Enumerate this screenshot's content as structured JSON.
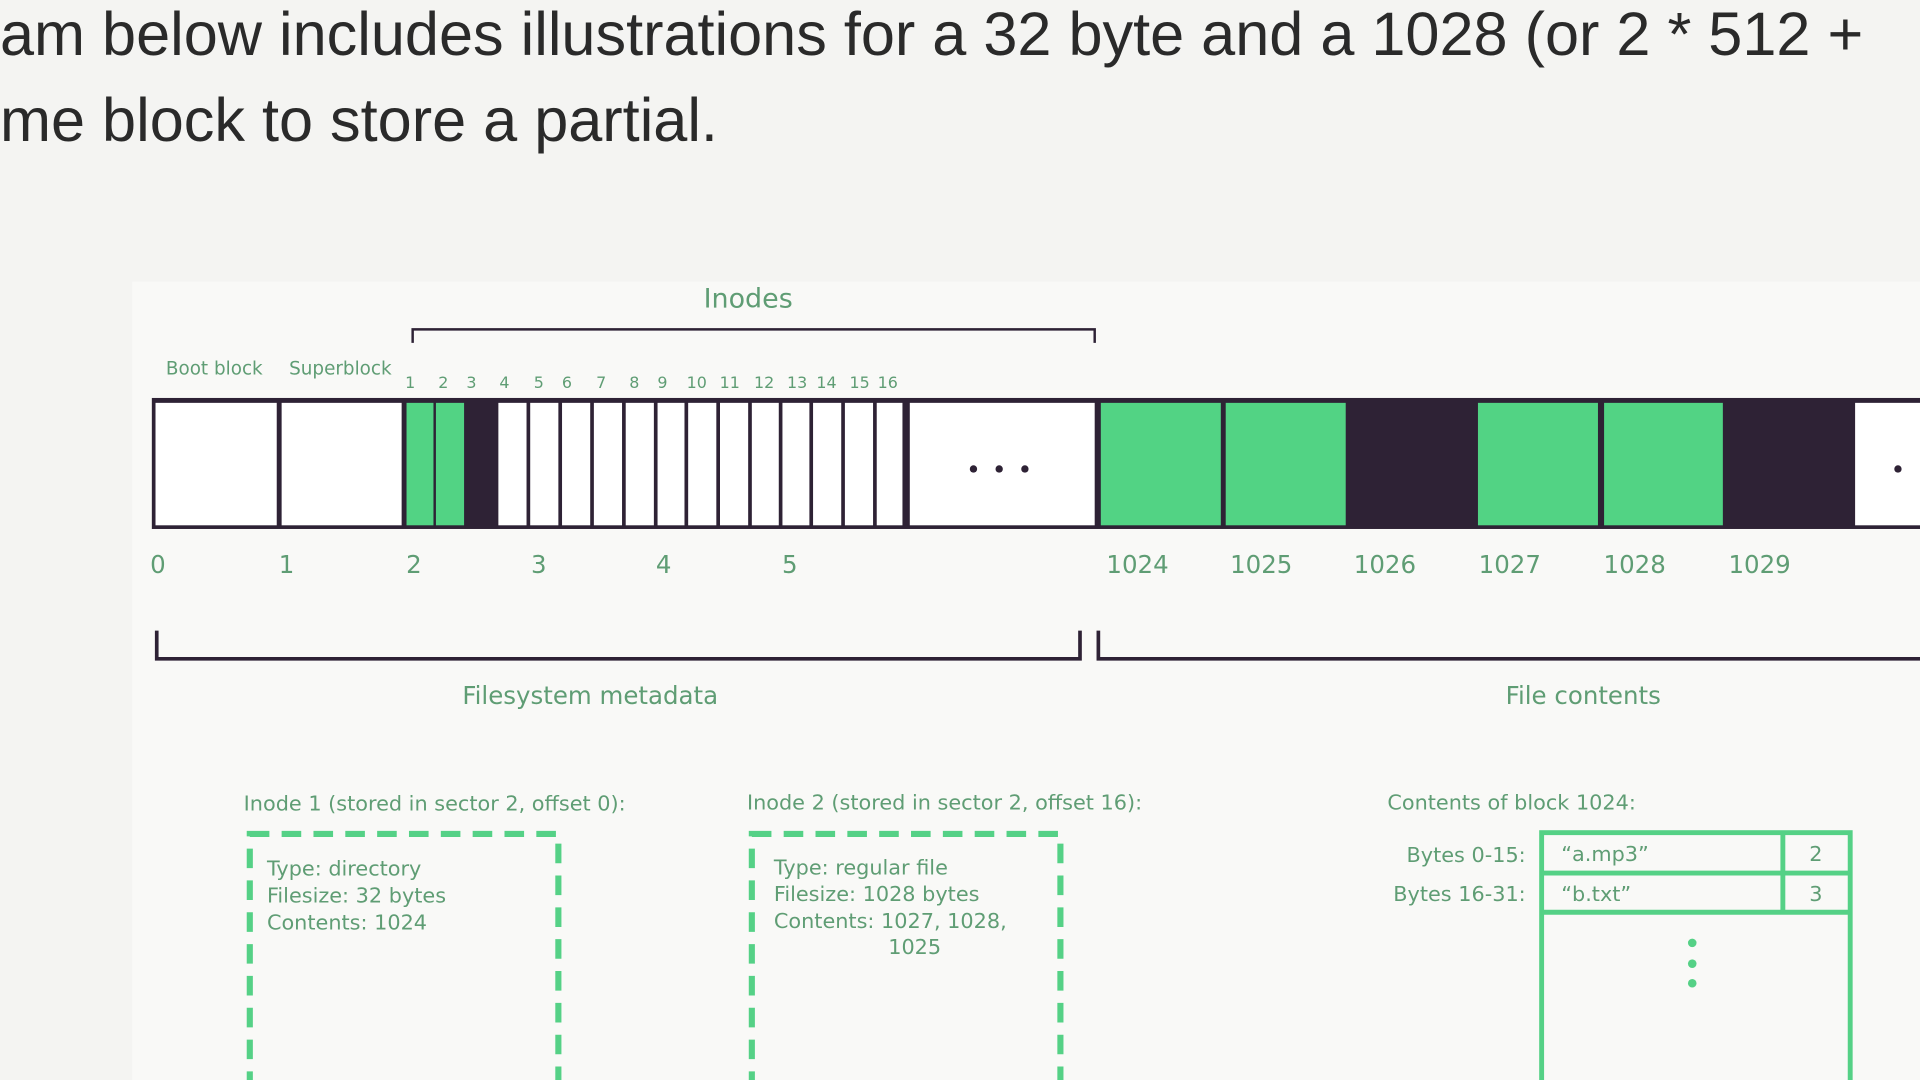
{
  "document": {
    "lines": [
      "am below includes illustrations for a 32 byte and a 1028 (or 2 * 512 +",
      "me block to store a partial."
    ]
  },
  "diagram": {
    "inodes_label": "Inodes",
    "boot_block": "Boot block",
    "superblock": "Superblock",
    "inode_numbers": [
      "1",
      "2",
      "3",
      "4",
      "5",
      "6",
      "7",
      "8",
      "9",
      "10",
      "11",
      "12",
      "13",
      "14",
      "15",
      "16"
    ],
    "sectors": [
      "0",
      "1",
      "2",
      "3",
      "4",
      "5",
      "1024",
      "1025",
      "1026",
      "1027",
      "1028",
      "1029"
    ],
    "metadata_label": "Filesystem metadata",
    "contents_label": "File contents",
    "inode1": {
      "heading": "Inode 1 (stored in sector 2, offset 0):",
      "lines": [
        "Type: directory",
        "Filesize: 32 bytes",
        "Contents: 1024"
      ]
    },
    "inode2": {
      "heading": "Inode 2 (stored in sector 2, offset 16):",
      "lines": [
        "Type: regular file",
        "Filesize: 1028 bytes",
        "Contents: 1027, 1028,",
        "1025"
      ]
    },
    "block": {
      "heading": "Contents of block 1024:",
      "rows": [
        [
          "Bytes 0-15:",
          "“a.mp3”",
          "2"
        ],
        [
          "Bytes 16-31:",
          "“b.txt”",
          "3"
        ]
      ]
    }
  }
}
